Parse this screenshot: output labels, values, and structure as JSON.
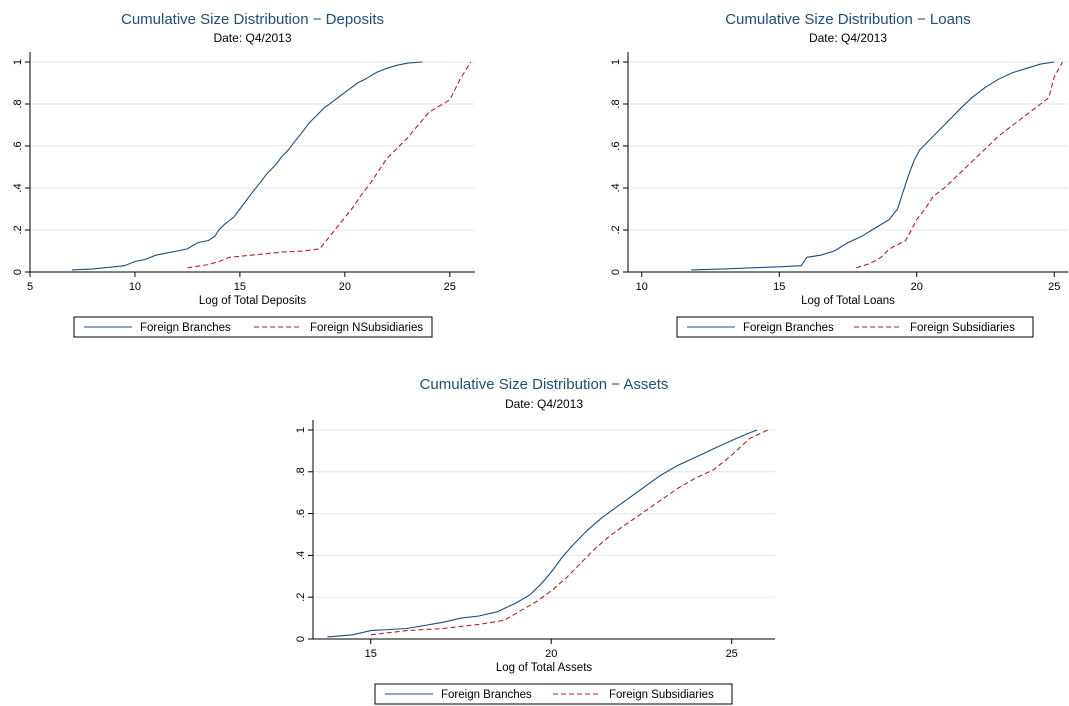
{
  "chart_data": [
    {
      "type": "line",
      "title": "Cumulative Size Distribution − Deposits",
      "subtitle": "Date: Q4/2013",
      "xlabel": "Log of Total Deposits",
      "ylabel": "",
      "xlim": [
        5,
        26.2
      ],
      "ylim": [
        0,
        1
      ],
      "xticks": [
        5,
        10,
        15,
        20,
        25
      ],
      "yticks": [
        0,
        0.2,
        0.4,
        0.6,
        0.8,
        1
      ],
      "ytick_labels": [
        "0",
        ".2",
        ".4",
        ".6",
        ".8",
        "1"
      ],
      "grid": true,
      "legend_position": "bottom",
      "series": [
        {
          "name": "Foreign Branches",
          "color": "#1f4e79",
          "style": "solid",
          "x": [
            7.0,
            8.0,
            9.0,
            9.5,
            10.0,
            10.5,
            11.0,
            11.5,
            12.0,
            12.5,
            13.0,
            13.5,
            13.8,
            14.0,
            14.3,
            14.7,
            15.0,
            15.3,
            15.6,
            16.0,
            16.3,
            16.7,
            17.0,
            17.3,
            17.6,
            18.0,
            18.3,
            18.6,
            19.0,
            19.4,
            19.8,
            20.2,
            20.6,
            21.0,
            21.5,
            22.0,
            22.5,
            23.0,
            23.7
          ],
          "y": [
            0.01,
            0.015,
            0.025,
            0.03,
            0.05,
            0.06,
            0.08,
            0.09,
            0.1,
            0.11,
            0.14,
            0.15,
            0.17,
            0.2,
            0.23,
            0.26,
            0.3,
            0.34,
            0.38,
            0.43,
            0.47,
            0.51,
            0.55,
            0.58,
            0.62,
            0.67,
            0.71,
            0.74,
            0.78,
            0.81,
            0.84,
            0.87,
            0.9,
            0.92,
            0.95,
            0.97,
            0.985,
            0.995,
            1.0
          ]
        },
        {
          "name": "Foreign NSubsidiaries",
          "color": "#b22222",
          "style": "dashed",
          "x": [
            12.5,
            13.5,
            14.0,
            14.5,
            15.0,
            16.0,
            17.0,
            18.0,
            18.8,
            19.2,
            19.6,
            20.0,
            20.4,
            20.8,
            21.2,
            21.6,
            22.0,
            22.5,
            23.0,
            23.5,
            24.0,
            24.5,
            25.0,
            25.5,
            26.0
          ],
          "y": [
            0.02,
            0.035,
            0.05,
            0.07,
            0.075,
            0.085,
            0.095,
            0.1,
            0.11,
            0.16,
            0.21,
            0.26,
            0.31,
            0.37,
            0.42,
            0.48,
            0.54,
            0.59,
            0.64,
            0.7,
            0.76,
            0.79,
            0.82,
            0.92,
            1.0
          ]
        }
      ]
    },
    {
      "type": "line",
      "title": "Cumulative Size Distribution − Loans",
      "subtitle": "Date: Q4/2013",
      "xlabel": "Log of Total Loans",
      "ylabel": "",
      "xlim": [
        9.5,
        25.5
      ],
      "ylim": [
        0,
        1
      ],
      "xticks": [
        10,
        15,
        20,
        25
      ],
      "yticks": [
        0,
        0.2,
        0.4,
        0.6,
        0.8,
        1
      ],
      "ytick_labels": [
        "0",
        ".2",
        ".4",
        ".6",
        ".8",
        "1"
      ],
      "grid": true,
      "legend_position": "bottom",
      "series": [
        {
          "name": "Foreign Branches",
          "color": "#1f4e79",
          "style": "solid",
          "x": [
            11.8,
            13.0,
            14.0,
            15.0,
            15.8,
            16.0,
            16.5,
            17.0,
            17.5,
            18.0,
            18.5,
            19.0,
            19.3,
            19.5,
            19.7,
            19.9,
            20.1,
            20.4,
            20.7,
            21.0,
            21.3,
            21.6,
            22.0,
            22.5,
            23.0,
            23.5,
            24.0,
            24.5,
            25.0
          ],
          "y": [
            0.01,
            0.015,
            0.02,
            0.025,
            0.03,
            0.07,
            0.08,
            0.1,
            0.14,
            0.17,
            0.21,
            0.25,
            0.3,
            0.38,
            0.46,
            0.53,
            0.58,
            0.62,
            0.66,
            0.7,
            0.74,
            0.78,
            0.83,
            0.88,
            0.92,
            0.95,
            0.97,
            0.99,
            1.0
          ]
        },
        {
          "name": "Foreign Subsidiaries",
          "color": "#b22222",
          "style": "dashed",
          "x": [
            17.8,
            18.3,
            18.7,
            19.0,
            19.3,
            19.6,
            19.8,
            20.0,
            20.3,
            20.6,
            21.0,
            21.4,
            21.8,
            22.2,
            22.6,
            23.0,
            23.5,
            24.0,
            24.5,
            24.8,
            25.0,
            25.3
          ],
          "y": [
            0.02,
            0.04,
            0.07,
            0.11,
            0.13,
            0.15,
            0.2,
            0.25,
            0.3,
            0.36,
            0.4,
            0.45,
            0.5,
            0.55,
            0.6,
            0.65,
            0.7,
            0.75,
            0.8,
            0.83,
            0.93,
            1.0
          ]
        }
      ]
    },
    {
      "type": "line",
      "title": "Cumulative Size Distribution − Assets",
      "subtitle": "Date: Q4/2013",
      "xlabel": "Log of Total Assets",
      "ylabel": "",
      "xlim": [
        13.4,
        26.2
      ],
      "ylim": [
        0,
        1
      ],
      "xticks": [
        15,
        20,
        25
      ],
      "yticks": [
        0,
        0.2,
        0.4,
        0.6,
        0.8,
        1
      ],
      "ytick_labels": [
        "0",
        ".2",
        ".4",
        ".6",
        ".8",
        "1"
      ],
      "grid": true,
      "legend_position": "bottom",
      "series": [
        {
          "name": "Foreign Branches",
          "color": "#1f4e79",
          "style": "solid",
          "x": [
            13.8,
            14.5,
            15.0,
            16.0,
            17.0,
            17.5,
            18.0,
            18.5,
            19.0,
            19.4,
            19.7,
            20.0,
            20.3,
            20.6,
            21.0,
            21.4,
            21.8,
            22.2,
            22.6,
            23.0,
            23.5,
            24.0,
            24.5,
            25.0,
            25.4,
            25.7
          ],
          "y": [
            0.01,
            0.02,
            0.04,
            0.05,
            0.08,
            0.1,
            0.11,
            0.13,
            0.17,
            0.21,
            0.26,
            0.32,
            0.39,
            0.45,
            0.52,
            0.58,
            0.63,
            0.68,
            0.73,
            0.78,
            0.83,
            0.87,
            0.91,
            0.95,
            0.98,
            1.0
          ]
        },
        {
          "name": "Foreign Subsidiaries",
          "color": "#b22222",
          "style": "dashed",
          "x": [
            15.0,
            16.0,
            17.0,
            18.0,
            18.7,
            19.2,
            19.6,
            20.0,
            20.4,
            20.8,
            21.2,
            21.6,
            22.0,
            22.5,
            23.0,
            23.5,
            24.0,
            24.5,
            25.0,
            25.5,
            26.0
          ],
          "y": [
            0.02,
            0.04,
            0.05,
            0.07,
            0.09,
            0.14,
            0.18,
            0.23,
            0.29,
            0.36,
            0.43,
            0.49,
            0.54,
            0.6,
            0.66,
            0.72,
            0.77,
            0.81,
            0.88,
            0.96,
            1.0
          ]
        }
      ]
    }
  ]
}
